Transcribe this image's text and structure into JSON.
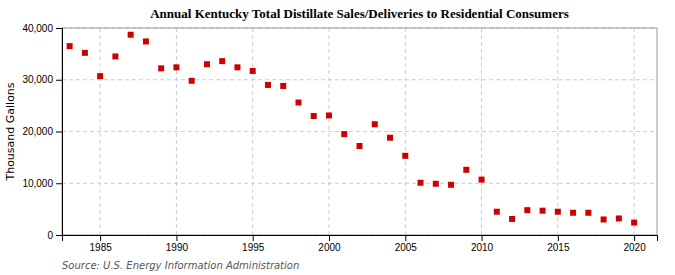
{
  "chart_data": {
    "type": "scatter",
    "title": "Annual Kentucky Total Distillate Sales/Deliveries to Residential Consumers",
    "ylabel": "Thousand Gallons",
    "annotations": [
      "Source: U.S. Energy Information Administration"
    ],
    "x": [
      1983,
      1984,
      1985,
      1986,
      1987,
      1988,
      1989,
      1990,
      1991,
      1992,
      1993,
      1994,
      1995,
      1996,
      1997,
      1998,
      1999,
      2000,
      2001,
      2002,
      2003,
      2004,
      2005,
      2006,
      2007,
      2008,
      2009,
      2010,
      2011,
      2012,
      2013,
      2014,
      2015,
      2016,
      2017,
      2018,
      2019,
      2020
    ],
    "values": [
      36500,
      35200,
      30700,
      34500,
      38700,
      37400,
      32200,
      32400,
      29800,
      33000,
      33600,
      32400,
      31700,
      29000,
      28800,
      25600,
      23000,
      23100,
      19500,
      17200,
      21400,
      18800,
      15300,
      10100,
      9900,
      9700,
      12600,
      10700,
      4500,
      3100,
      4800,
      4700,
      4500,
      4300,
      4300,
      3000,
      3200,
      2400
    ],
    "color": "#cc0000",
    "marker": "square",
    "grid": true,
    "xlim": [
      1982.5,
      2021.5
    ],
    "xticks": [
      1985,
      1990,
      1995,
      2000,
      2005,
      2010,
      2015,
      2020
    ],
    "ylim": [
      0,
      40000
    ],
    "yticks": [
      0,
      {
        "value": 10000,
        "label": "10,000"
      },
      {
        "value": 20000,
        "label": "20,000"
      },
      {
        "value": 30000,
        "label": "30,000"
      },
      {
        "value": 40000,
        "label": "40,000"
      }
    ]
  }
}
